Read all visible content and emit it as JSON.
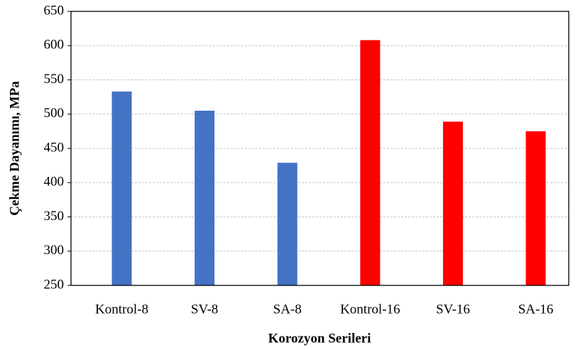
{
  "chart_data": {
    "type": "bar",
    "x_label": "Korozyon Serileri",
    "y_label": "Çekme Dayanımı, MPa",
    "categories": [
      "Kontrol-8",
      "SV-8",
      "SA-8",
      "Kontrol-16",
      "SV-16",
      "SA-16"
    ],
    "values": [
      533,
      505,
      429,
      608,
      489,
      475
    ],
    "colors": [
      "#4472c4",
      "#4472c4",
      "#4472c4",
      "#ff0000",
      "#ff0000",
      "#ff0000"
    ],
    "ylim": [
      250,
      650
    ],
    "yticks": [
      250,
      300,
      350,
      400,
      450,
      500,
      550,
      600,
      650
    ],
    "grid": true
  }
}
